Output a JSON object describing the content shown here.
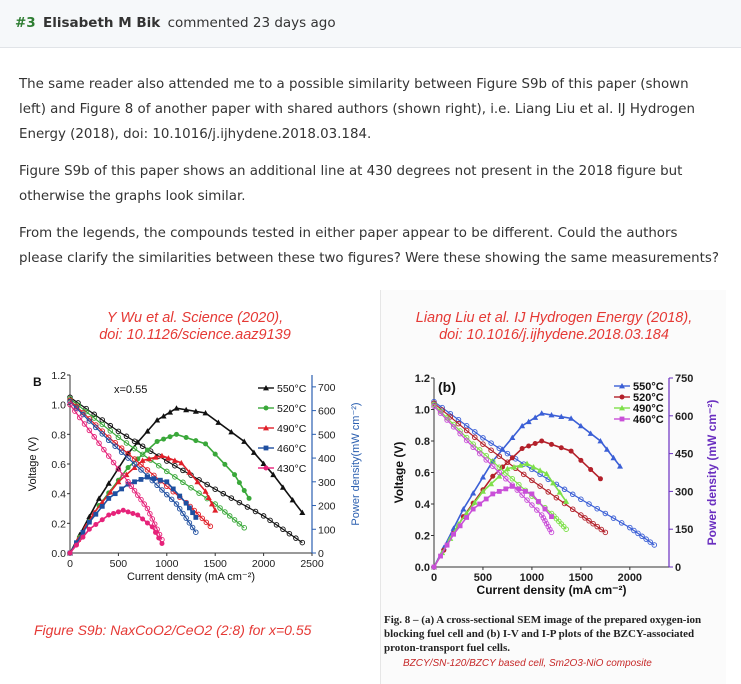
{
  "comment": {
    "number": "#3",
    "author": "Elisabeth M Bik",
    "action": "commented 23 days ago"
  },
  "paragraphs": [
    "The same reader also attended me to a possible similarity between Figure S9b of this paper (shown left) and Figure 8 of another paper with shared authors (shown right), i.e. Liang Liu et al. IJ Hydrogen Energy (2018), doi: 10.1016/j.ijhydene.2018.03.184.",
    "Figure S9b of this paper shows an additional line at 430 degrees not present in the 2018 figure but otherwise the graphs look similar.",
    "From the legends, the compounds tested in either paper appear to be different. Could the authors please clarify the similarities between these two figures? Were these showing the same measurements?"
  ],
  "left_figure": {
    "caption_line1": "Y Wu et al. Science (2020),",
    "caption_line2": "doi: 10.1126/science.aaz9139",
    "panel_label": "B",
    "x_note": "x=0.55",
    "bottom_caption": "Figure S9b: NaxCoO2/CeO2 (2:8) for x=0.55",
    "colors": {
      "550": "#111111",
      "520": "#3aa83a",
      "490": "#e0202a",
      "460": "#1f4fa0",
      "430": "#e6237a"
    }
  },
  "right_figure": {
    "caption_line1": "Liang Liu et al. IJ Hydrogen Energy (2018),",
    "caption_line2": "doi: 10.1016/j.ijhydene.2018.03.184",
    "panel_label": "(b)",
    "fig_caption": "Fig. 8 – (a) A cross-sectional SEM image of the prepared oxygen-ion blocking fuel cell and (b) I-V and I-P plots of the BZCY-associated proton-transport fuel cells.",
    "sub_caption": "BZCY/SN-120/BZCY based cell, Sm2O3-NiO composite",
    "colors": {
      "550": "#3b5fd6",
      "520": "#b3202a",
      "490": "#7ee04a",
      "460": "#c94fd8"
    }
  },
  "chart_data": [
    {
      "type": "line",
      "title": "Figure S9b",
      "xlabel": "Current density (mA cm⁻²)",
      "ylabel": "Voltage (V)",
      "y2label": "Power density(mW cm⁻²)",
      "xlim": [
        0,
        2500
      ],
      "ylim": [
        0,
        1.2
      ],
      "y2lim": [
        0,
        750
      ],
      "xticks": [
        "0",
        "500",
        "1000",
        "1500",
        "2000",
        "2500"
      ],
      "yticks": [
        "0.0",
        "0.2",
        "0.4",
        "0.6",
        "0.8",
        "1.0",
        "1.2"
      ],
      "y2ticks": [
        "0",
        "100",
        "200",
        "300",
        "400",
        "500",
        "600",
        "700"
      ],
      "legend": [
        "550°C",
        "520°C",
        "490°C",
        "460°C",
        "430°C"
      ],
      "series": [
        {
          "name": "550°C",
          "key": "550",
          "iv": [
            [
              0,
              1.05
            ],
            [
              500,
              0.82
            ],
            [
              1000,
              0.62
            ],
            [
              1500,
              0.43
            ],
            [
              2000,
              0.25
            ],
            [
              2400,
              0.07
            ]
          ],
          "power": [
            [
              0,
              0
            ],
            [
              300,
              230
            ],
            [
              600,
              420
            ],
            [
              900,
              560
            ],
            [
              1100,
              610
            ],
            [
              1400,
              590
            ],
            [
              1800,
              470
            ],
            [
              2100,
              330
            ],
            [
              2400,
              170
            ]
          ]
        },
        {
          "name": "520°C",
          "key": "520",
          "iv": [
            [
              0,
              1.04
            ],
            [
              500,
              0.78
            ],
            [
              1000,
              0.55
            ],
            [
              1500,
              0.33
            ],
            [
              1800,
              0.17
            ]
          ],
          "power": [
            [
              0,
              0
            ],
            [
              300,
              200
            ],
            [
              600,
              360
            ],
            [
              900,
              470
            ],
            [
              1100,
              500
            ],
            [
              1400,
              460
            ],
            [
              1700,
              330
            ],
            [
              1850,
              230
            ]
          ]
        },
        {
          "name": "490°C",
          "key": "490",
          "iv": [
            [
              0,
              1.03
            ],
            [
              400,
              0.78
            ],
            [
              800,
              0.56
            ],
            [
              1200,
              0.34
            ],
            [
              1450,
              0.18
            ]
          ],
          "power": [
            [
              0,
              0
            ],
            [
              250,
              170
            ],
            [
              500,
              300
            ],
            [
              750,
              390
            ],
            [
              950,
              410
            ],
            [
              1150,
              380
            ],
            [
              1400,
              260
            ],
            [
              1500,
              180
            ]
          ]
        },
        {
          "name": "460°C",
          "key": "460",
          "iv": [
            [
              0,
              1.02
            ],
            [
              400,
              0.76
            ],
            [
              800,
              0.52
            ],
            [
              1100,
              0.33
            ],
            [
              1300,
              0.14
            ]
          ],
          "power": [
            [
              0,
              0
            ],
            [
              200,
              130
            ],
            [
              400,
              230
            ],
            [
              600,
              290
            ],
            [
              800,
              320
            ],
            [
              1000,
              300
            ],
            [
              1200,
              210
            ],
            [
              1300,
              150
            ]
          ]
        },
        {
          "name": "430°C",
          "key": "430",
          "iv": [
            [
              0,
              1.0
            ],
            [
              300,
              0.74
            ],
            [
              600,
              0.48
            ],
            [
              800,
              0.3
            ],
            [
              950,
              0.09
            ]
          ],
          "power": [
            [
              0,
              0
            ],
            [
              200,
              100
            ],
            [
              400,
              160
            ],
            [
              550,
              180
            ],
            [
              700,
              160
            ],
            [
              850,
              110
            ],
            [
              950,
              40
            ]
          ]
        }
      ]
    },
    {
      "type": "line",
      "title": "Fig. 8 (b)",
      "xlabel": "Current density (mA cm⁻²)",
      "ylabel": "Voltage (V)",
      "y2label": "Power density (mW cm⁻²)",
      "xlim": [
        0,
        2400
      ],
      "ylim": [
        0,
        1.2
      ],
      "y2lim": [
        0,
        750
      ],
      "xticks": [
        "0",
        "500",
        "1000",
        "1500",
        "2000"
      ],
      "yticks": [
        "0.0",
        "0.2",
        "0.4",
        "0.6",
        "0.8",
        "1.0",
        "1.2"
      ],
      "y2ticks": [
        "0",
        "150",
        "300",
        "450",
        "600",
        "750"
      ],
      "legend": [
        "550°C",
        "520°C",
        "490°C",
        "460°C"
      ],
      "series": [
        {
          "name": "550°C",
          "key": "550",
          "iv": [
            [
              0,
              1.05
            ],
            [
              500,
              0.82
            ],
            [
              1000,
              0.62
            ],
            [
              1500,
              0.43
            ],
            [
              2000,
              0.25
            ],
            [
              2250,
              0.14
            ]
          ],
          "power": [
            [
              0,
              0
            ],
            [
              300,
              230
            ],
            [
              600,
              420
            ],
            [
              900,
              560
            ],
            [
              1100,
              610
            ],
            [
              1400,
              590
            ],
            [
              1700,
              500
            ],
            [
              1900,
              400
            ]
          ]
        },
        {
          "name": "520°C",
          "key": "520",
          "iv": [
            [
              0,
              1.04
            ],
            [
              500,
              0.78
            ],
            [
              1000,
              0.55
            ],
            [
              1500,
              0.33
            ],
            [
              1750,
              0.22
            ]
          ],
          "power": [
            [
              0,
              0
            ],
            [
              300,
              200
            ],
            [
              600,
              360
            ],
            [
              900,
              470
            ],
            [
              1100,
              500
            ],
            [
              1400,
              460
            ],
            [
              1700,
              350
            ]
          ]
        },
        {
          "name": "490°C",
          "key": "490",
          "iv": [
            [
              0,
              1.03
            ],
            [
              400,
              0.78
            ],
            [
              800,
              0.56
            ],
            [
              1200,
              0.34
            ],
            [
              1350,
              0.24
            ]
          ],
          "power": [
            [
              0,
              0
            ],
            [
              250,
              170
            ],
            [
              500,
              300
            ],
            [
              750,
              390
            ],
            [
              950,
              410
            ],
            [
              1150,
              370
            ],
            [
              1350,
              260
            ]
          ]
        },
        {
          "name": "460°C",
          "key": "460",
          "iv": [
            [
              0,
              1.02
            ],
            [
              400,
              0.76
            ],
            [
              800,
              0.52
            ],
            [
              1100,
              0.33
            ],
            [
              1200,
              0.22
            ]
          ],
          "power": [
            [
              0,
              0
            ],
            [
              200,
              130
            ],
            [
              400,
              230
            ],
            [
              600,
              290
            ],
            [
              800,
              320
            ],
            [
              1000,
              290
            ],
            [
              1200,
              200
            ]
          ]
        }
      ]
    }
  ]
}
